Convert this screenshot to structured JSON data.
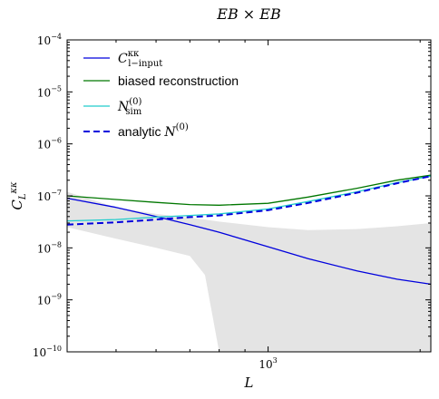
{
  "chart_data": {
    "type": "line",
    "title": "EB × EB",
    "xlabel": "L",
    "ylabel": "C_L^κκ",
    "xscale": "log",
    "yscale": "log",
    "xlim": [
      400,
      2100
    ],
    "ylim": [
      1e-10,
      0.0001
    ],
    "x_ticks": [
      {
        "value": 1000,
        "label": "10",
        "sup": "3"
      }
    ],
    "y_ticks": [
      {
        "value": 1e-10,
        "label": "10",
        "sup": "−10"
      },
      {
        "value": 1e-09,
        "label": "10",
        "sup": "−9"
      },
      {
        "value": 1e-08,
        "label": "10",
        "sup": "−8"
      },
      {
        "value": 1e-07,
        "label": "10",
        "sup": "−7"
      },
      {
        "value": 1e-06,
        "label": "10",
        "sup": "−6"
      },
      {
        "value": 1e-05,
        "label": "10",
        "sup": "−5"
      },
      {
        "value": 0.0001,
        "label": "10",
        "sup": "−4"
      }
    ],
    "grid": false,
    "legend_position": "top-left",
    "band": {
      "color": "#e4e4e4",
      "x": [
        400,
        500,
        600,
        700,
        750,
        800,
        1000,
        1200,
        1500,
        1800,
        2100
      ],
      "upper": [
        1.2e-07,
        6e-08,
        4.5e-08,
        3.8e-08,
        3.5e-08,
        3.2e-08,
        2.5e-08,
        2.2e-08,
        2.3e-08,
        2.6e-08,
        3e-08
      ],
      "lower": [
        2.5e-08,
        1.5e-08,
        1e-08,
        7e-09,
        3e-09,
        1e-10,
        1e-10,
        1e-10,
        1e-10,
        1e-10,
        1e-10
      ]
    },
    "series": [
      {
        "name": "C_{l-input}^{κκ}",
        "legend_main": "C",
        "legend_sup": "κκ",
        "legend_sub": "l−input",
        "color": "#0000dd",
        "dash": "",
        "x": [
          400,
          500,
          600,
          700,
          800,
          1000,
          1200,
          1500,
          1800,
          2100
        ],
        "y": [
          9e-08,
          6e-08,
          4e-08,
          2.8e-08,
          2e-08,
          1.05e-08,
          6.2e-09,
          3.6e-09,
          2.5e-09,
          2e-09
        ]
      },
      {
        "name": "biased reconstruction",
        "legend_text": "biased reconstruction",
        "color": "#007700",
        "dash": "",
        "x": [
          400,
          500,
          600,
          700,
          800,
          1000,
          1200,
          1500,
          1800,
          2100
        ],
        "y": [
          1e-07,
          8.5e-08,
          7.5e-08,
          6.8e-08,
          6.6e-08,
          7.2e-08,
          9.5e-08,
          1.4e-07,
          2e-07,
          2.5e-07
        ]
      },
      {
        "name": "N_sim^(0)",
        "legend_main": "N",
        "legend_sup": "(0)",
        "legend_sub": "sim",
        "color": "#22cccc",
        "dash": "",
        "x": [
          400,
          500,
          600,
          700,
          800,
          1000,
          1200,
          1500,
          1800,
          2100
        ],
        "y": [
          3.3e-08,
          3.5e-08,
          3.9e-08,
          4.2e-08,
          4.5e-08,
          5.6e-08,
          7.8e-08,
          1.2e-07,
          1.8e-07,
          2.4e-07
        ]
      },
      {
        "name": "analytic N^(0)",
        "legend_text": "analytic",
        "legend_main": "N",
        "legend_sup": "(0)",
        "color": "#0000dd",
        "dash": "7,4",
        "x": [
          400,
          500,
          600,
          700,
          800,
          1000,
          1200,
          1500,
          1800,
          2100
        ],
        "y": [
          2.8e-08,
          3.1e-08,
          3.5e-08,
          3.9e-08,
          4.2e-08,
          5.3e-08,
          7.3e-08,
          1.15e-07,
          1.75e-07,
          2.4e-07
        ]
      }
    ]
  }
}
